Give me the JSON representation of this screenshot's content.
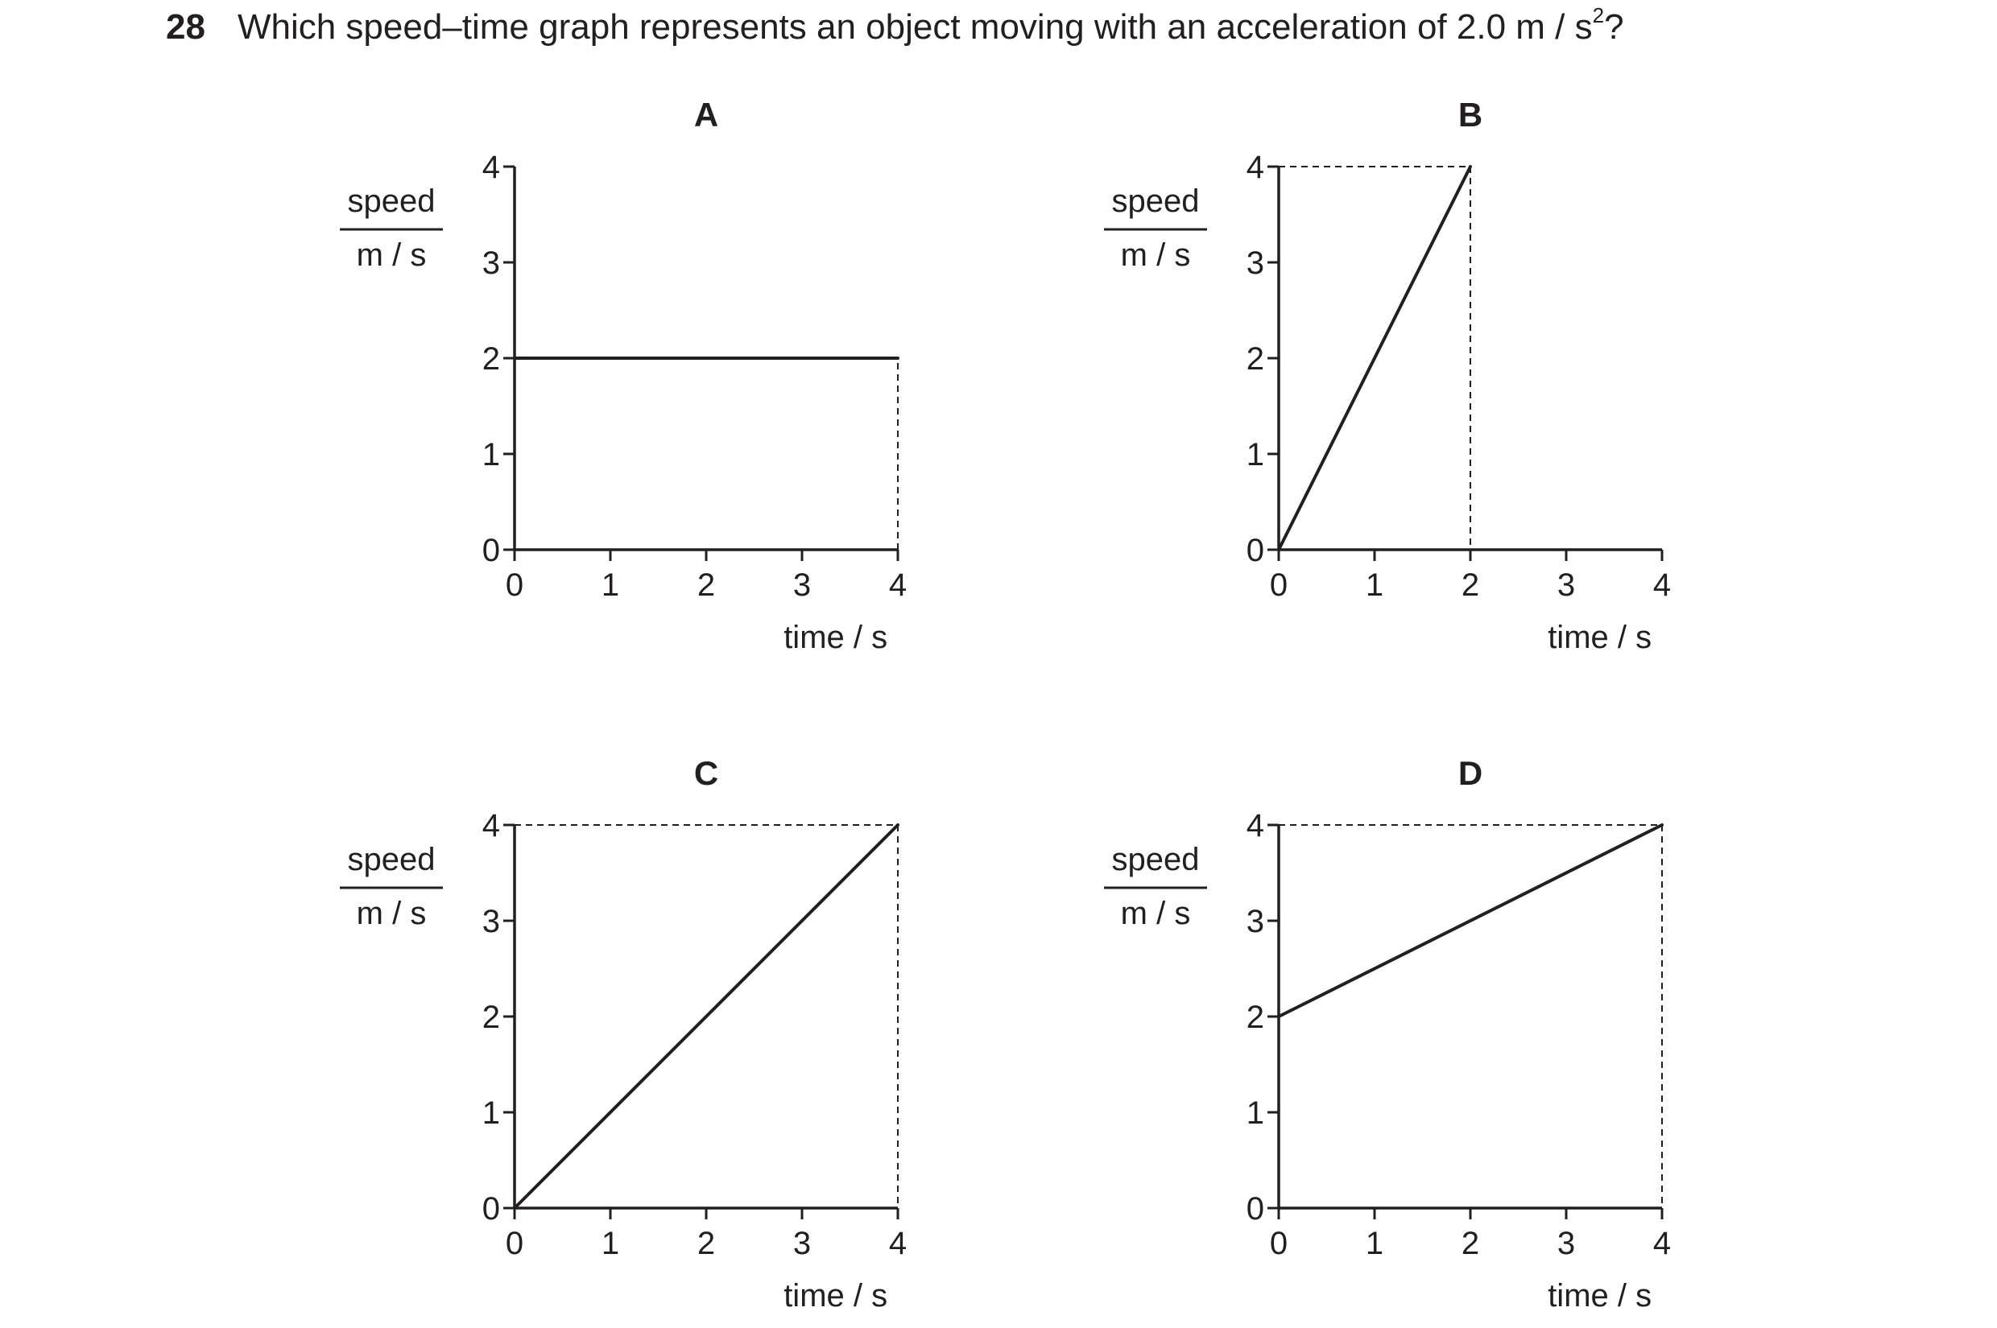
{
  "question": {
    "number": "28",
    "text_before": "Which speed–time graph represents an object moving with an acceleration of 2.0 m / s",
    "superscript": "2",
    "text_after": "?"
  },
  "chart_data": [
    {
      "type": "line",
      "title": "A",
      "xlabel": "time / s",
      "ylabel_numerator": "speed",
      "ylabel_denominator": "m / s",
      "xlim": [
        0,
        4
      ],
      "ylim": [
        0,
        4
      ],
      "xticks": [
        "0",
        "1",
        "2",
        "3",
        "4"
      ],
      "yticks": [
        "0",
        "1",
        "2",
        "3",
        "4"
      ],
      "grid": false,
      "series": [
        {
          "x": [
            0,
            4
          ],
          "y": [
            2,
            2
          ]
        }
      ],
      "guides": [
        {
          "x1": 4,
          "y1": 0,
          "x2": 4,
          "y2": 2
        }
      ]
    },
    {
      "type": "line",
      "title": "B",
      "xlabel": "time / s",
      "ylabel_numerator": "speed",
      "ylabel_denominator": "m / s",
      "xlim": [
        0,
        4
      ],
      "ylim": [
        0,
        4
      ],
      "xticks": [
        "0",
        "1",
        "2",
        "3",
        "4"
      ],
      "yticks": [
        "0",
        "1",
        "2",
        "3",
        "4"
      ],
      "grid": false,
      "series": [
        {
          "x": [
            0,
            2
          ],
          "y": [
            0,
            4
          ]
        }
      ],
      "guides": [
        {
          "x1": 0,
          "y1": 4,
          "x2": 2,
          "y2": 4
        },
        {
          "x1": 2,
          "y1": 4,
          "x2": 2,
          "y2": 0
        }
      ]
    },
    {
      "type": "line",
      "title": "C",
      "xlabel": "time / s",
      "ylabel_numerator": "speed",
      "ylabel_denominator": "m / s",
      "xlim": [
        0,
        4
      ],
      "ylim": [
        0,
        4
      ],
      "xticks": [
        "0",
        "1",
        "2",
        "3",
        "4"
      ],
      "yticks": [
        "0",
        "1",
        "2",
        "3",
        "4"
      ],
      "grid": false,
      "series": [
        {
          "x": [
            0,
            4
          ],
          "y": [
            0,
            4
          ]
        }
      ],
      "guides": [
        {
          "x1": 0,
          "y1": 4,
          "x2": 4,
          "y2": 4
        },
        {
          "x1": 4,
          "y1": 4,
          "x2": 4,
          "y2": 0
        }
      ]
    },
    {
      "type": "line",
      "title": "D",
      "xlabel": "time / s",
      "ylabel_numerator": "speed",
      "ylabel_denominator": "m / s",
      "xlim": [
        0,
        4
      ],
      "ylim": [
        0,
        4
      ],
      "xticks": [
        "0",
        "1",
        "2",
        "3",
        "4"
      ],
      "yticks": [
        "0",
        "1",
        "2",
        "3",
        "4"
      ],
      "grid": false,
      "series": [
        {
          "x": [
            0,
            4
          ],
          "y": [
            2,
            4
          ]
        }
      ],
      "guides": [
        {
          "x1": 0,
          "y1": 4,
          "x2": 4,
          "y2": 4
        },
        {
          "x1": 4,
          "y1": 4,
          "x2": 4,
          "y2": 0
        }
      ]
    }
  ]
}
